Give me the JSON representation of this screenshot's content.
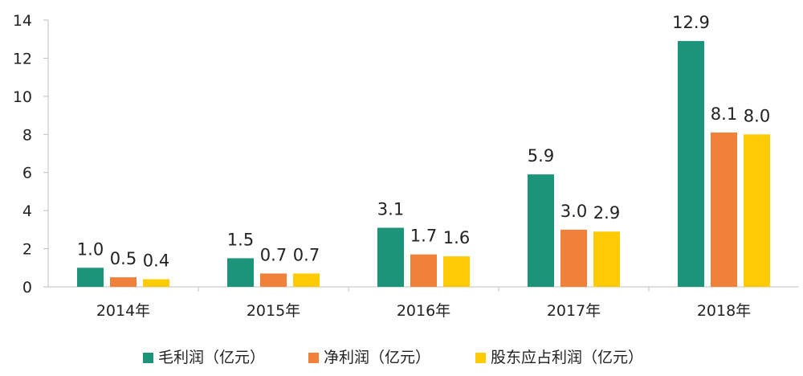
{
  "chart_data": {
    "type": "bar",
    "categories": [
      "2014年",
      "2015年",
      "2016年",
      "2017年",
      "2018年"
    ],
    "series": [
      {
        "name": "毛利润（亿元）",
        "values": [
          1.0,
          1.5,
          3.1,
          5.9,
          12.9
        ],
        "labels": [
          "1.0",
          "1.5",
          "3.1",
          "5.9",
          "12.9"
        ],
        "color": "#1b9479"
      },
      {
        "name": "净利润（亿元）",
        "values": [
          0.5,
          0.7,
          1.7,
          3.0,
          8.1
        ],
        "labels": [
          "0.5",
          "0.7",
          "1.7",
          "3.0",
          "8.1"
        ],
        "color": "#f0813a"
      },
      {
        "name": "股东应占利润（亿元）",
        "values": [
          0.4,
          0.7,
          1.6,
          2.9,
          8.0
        ],
        "labels": [
          "0.4",
          "0.7",
          "1.6",
          "2.9",
          "8.0"
        ],
        "color": "#ffcb05"
      }
    ],
    "yticks": [
      "0",
      "2",
      "4",
      "6",
      "8",
      "10",
      "12",
      "14"
    ],
    "ylim": [
      0,
      14
    ],
    "grid": false,
    "legend": "bottom"
  }
}
